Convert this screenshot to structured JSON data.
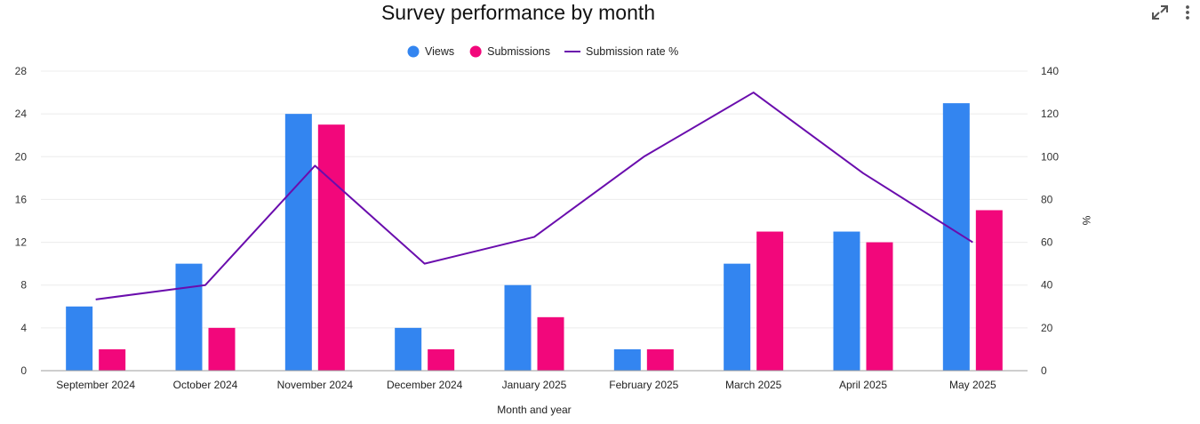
{
  "toolbar": {
    "expand_icon": "expand-icon",
    "menu_icon": "more-vert-icon"
  },
  "chart_data": {
    "type": "bar",
    "title": "Survey performance by month",
    "xlabel": "Month and year",
    "ylabel_left": "",
    "ylabel_right": "%",
    "categories": [
      "September 2024",
      "October 2024",
      "November 2024",
      "December 2024",
      "January 2025",
      "February 2025",
      "March 2025",
      "April 2025",
      "May 2025"
    ],
    "series": [
      {
        "name": "Views",
        "type": "bar",
        "axis": "left",
        "color": "#3385f0",
        "values": [
          6,
          10,
          24,
          4,
          8,
          2,
          10,
          13,
          25
        ]
      },
      {
        "name": "Submissions",
        "type": "bar",
        "axis": "left",
        "color": "#f2077b",
        "values": [
          2,
          4,
          23,
          2,
          5,
          2,
          13,
          12,
          15
        ]
      },
      {
        "name": "Submission rate %",
        "type": "line",
        "axis": "right",
        "color": "#6a0dad",
        "values": [
          33.3,
          40,
          95.8,
          50,
          62.5,
          100,
          130,
          92.3,
          60
        ]
      }
    ],
    "ylim_left": [
      0,
      28
    ],
    "yticks_left": [
      "0",
      "4",
      "8",
      "12",
      "16",
      "20",
      "24",
      "28"
    ],
    "ylim_right": [
      0,
      140
    ],
    "yticks_right": [
      "0",
      "20",
      "40",
      "60",
      "80",
      "100",
      "120",
      "140"
    ],
    "grid": true,
    "legend": "top-center"
  }
}
